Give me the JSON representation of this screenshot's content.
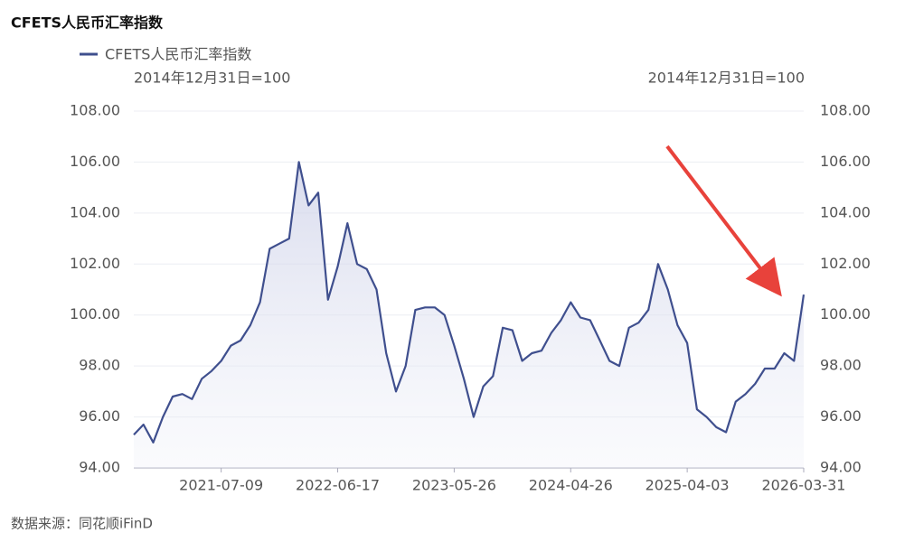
{
  "chart_data": {
    "type": "line",
    "title": "CFETS人民币汇率指数",
    "y_axis_label": "2014年12月31日=100",
    "y2_axis_label": "2014年12月31日=100",
    "source": "数据来源：同花顺iFinD",
    "categories": [
      null,
      null,
      null,
      null,
      null,
      null,
      null,
      null,
      null,
      "2021-07-09",
      null,
      null,
      null,
      null,
      null,
      null,
      null,
      null,
      null,
      null,
      null,
      "2022-06-17",
      null,
      null,
      null,
      null,
      null,
      null,
      null,
      null,
      null,
      null,
      null,
      "2023-05-26",
      null,
      null,
      null,
      null,
      null,
      null,
      null,
      null,
      null,
      null,
      null,
      "2024-04-26",
      null,
      null,
      null,
      null,
      null,
      null,
      null,
      null,
      null,
      null,
      null,
      "2025-04-03",
      null,
      null,
      null,
      null,
      null,
      null,
      null,
      null,
      null,
      null,
      null,
      "2026-03-31"
    ],
    "series": [
      {
        "name": "CFETS人民币汇率指数",
        "color": "#3f4f8e",
        "values": [
          95.3,
          95.7,
          95.0,
          96.0,
          96.8,
          96.9,
          96.7,
          97.5,
          97.8,
          98.2,
          98.8,
          99.0,
          99.6,
          100.5,
          102.6,
          102.8,
          103.0,
          106.0,
          104.3,
          104.8,
          100.6,
          101.9,
          103.6,
          102.0,
          101.8,
          101.0,
          98.5,
          97.0,
          98.0,
          100.2,
          100.3,
          100.3,
          100.0,
          98.8,
          97.5,
          96.0,
          97.2,
          97.6,
          99.5,
          99.4,
          98.2,
          98.5,
          98.6,
          99.3,
          99.8,
          100.5,
          99.9,
          99.8,
          99.0,
          98.2,
          98.0,
          99.5,
          99.7,
          100.2,
          102.0,
          101.0,
          99.6,
          98.9,
          96.3,
          96.0,
          95.6,
          95.4,
          96.6,
          96.9,
          97.3,
          97.9,
          97.9,
          98.5,
          98.2,
          100.8
        ]
      }
    ],
    "ylim": [
      94,
      108
    ],
    "yticks": [
      {
        "value": 94,
        "label": "94.00"
      },
      {
        "value": 96,
        "label": "96.00"
      },
      {
        "value": 98,
        "label": "98.00"
      },
      {
        "value": 100,
        "label": "100.00"
      },
      {
        "value": 102,
        "label": "102.00"
      },
      {
        "value": 104,
        "label": "104.00"
      },
      {
        "value": 106,
        "label": "106.00"
      },
      {
        "value": 108,
        "label": "108.00"
      }
    ],
    "y2lim": [
      94,
      108
    ],
    "y2ticks": [
      {
        "value": 94,
        "label": "94.00"
      },
      {
        "value": 96,
        "label": "96.00"
      },
      {
        "value": 98,
        "label": "98.00"
      },
      {
        "value": 100,
        "label": "100.00"
      },
      {
        "value": 102,
        "label": "102.00"
      },
      {
        "value": 104,
        "label": "104.00"
      },
      {
        "value": 106,
        "label": "106.00"
      },
      {
        "value": 108,
        "label": "108.00"
      }
    ],
    "grid": true,
    "legend": "top-left"
  }
}
